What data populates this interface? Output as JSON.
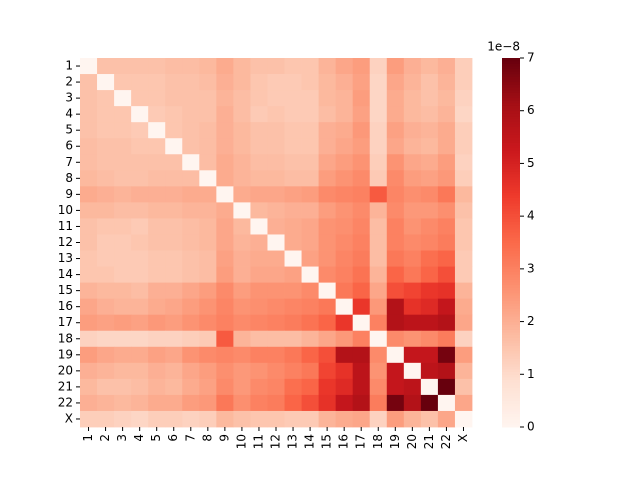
{
  "chart_data": {
    "type": "heatmap",
    "categories": [
      "1",
      "2",
      "3",
      "4",
      "5",
      "6",
      "7",
      "8",
      "9",
      "10",
      "11",
      "12",
      "13",
      "14",
      "15",
      "16",
      "17",
      "18",
      "19",
      "20",
      "21",
      "22",
      "X"
    ],
    "values": [
      [
        0,
        1.6,
        1.6,
        1.6,
        1.6,
        1.7,
        1.7,
        1.8,
        2.1,
        1.8,
        1.6,
        1.6,
        1.5,
        1.5,
        1.9,
        2.2,
        2.4,
        1.2,
        2.4,
        2.0,
        1.8,
        2.0,
        1.3
      ],
      [
        1.6,
        0,
        1.5,
        1.5,
        1.5,
        1.6,
        1.6,
        1.7,
        2.0,
        1.8,
        1.5,
        1.4,
        1.4,
        1.5,
        1.8,
        2.0,
        2.3,
        1.1,
        2.2,
        1.9,
        1.6,
        1.9,
        1.3
      ],
      [
        1.6,
        1.5,
        0,
        1.5,
        1.5,
        1.6,
        1.6,
        1.6,
        1.9,
        1.7,
        1.5,
        1.4,
        1.4,
        1.4,
        1.8,
        1.9,
        2.4,
        1.1,
        2.1,
        1.8,
        1.6,
        1.8,
        1.2
      ],
      [
        1.6,
        1.5,
        1.5,
        0,
        1.4,
        1.5,
        1.6,
        1.6,
        2.0,
        1.7,
        1.4,
        1.5,
        1.4,
        1.4,
        1.7,
        1.9,
        2.3,
        1.1,
        2.1,
        1.8,
        1.7,
        1.9,
        1.1
      ],
      [
        1.6,
        1.5,
        1.5,
        1.4,
        0,
        1.5,
        1.6,
        1.7,
        2.0,
        1.8,
        1.6,
        1.6,
        1.5,
        1.5,
        2.0,
        2.1,
        2.5,
        1.2,
        2.3,
        2.0,
        1.9,
        2.1,
        1.3
      ],
      [
        1.7,
        1.6,
        1.6,
        1.5,
        1.5,
        0,
        1.6,
        1.7,
        2.0,
        1.8,
        1.6,
        1.6,
        1.5,
        1.5,
        2.0,
        2.2,
        2.4,
        1.2,
        2.2,
        1.9,
        1.8,
        2.1,
        1.3
      ],
      [
        1.7,
        1.6,
        1.6,
        1.6,
        1.6,
        1.6,
        0,
        1.7,
        2.1,
        1.9,
        1.7,
        1.7,
        1.6,
        1.6,
        2.2,
        2.4,
        2.6,
        1.3,
        2.6,
        2.2,
        2.1,
        2.4,
        1.2
      ],
      [
        1.8,
        1.7,
        1.6,
        1.6,
        1.7,
        1.7,
        1.7,
        0,
        2.1,
        1.9,
        1.8,
        1.8,
        1.7,
        1.7,
        2.4,
        2.6,
        2.8,
        1.4,
        2.8,
        2.4,
        2.3,
        2.5,
        1.3
      ],
      [
        2.1,
        2.0,
        1.9,
        2.0,
        2.0,
        2.0,
        2.1,
        2.1,
        0,
        2.1,
        2.2,
        2.2,
        2.3,
        2.4,
        2.8,
        2.9,
        3.0,
        3.8,
        2.9,
        2.7,
        2.8,
        3.2,
        1.8
      ],
      [
        1.8,
        1.8,
        1.7,
        1.7,
        1.8,
        1.8,
        1.9,
        1.9,
        2.1,
        0,
        1.8,
        1.9,
        2.0,
        2.0,
        2.4,
        2.6,
        2.8,
        1.9,
        2.8,
        2.5,
        2.5,
        2.7,
        1.6
      ],
      [
        1.6,
        1.5,
        1.5,
        1.4,
        1.6,
        1.6,
        1.7,
        1.8,
        2.2,
        1.8,
        0,
        2.0,
        2.1,
        2.2,
        2.6,
        2.7,
        2.9,
        1.7,
        3.0,
        2.6,
        2.8,
        3.0,
        1.5
      ],
      [
        1.6,
        1.4,
        1.4,
        1.5,
        1.6,
        1.6,
        1.7,
        1.8,
        2.2,
        1.9,
        2.0,
        0,
        2.1,
        2.2,
        2.6,
        2.8,
        3.0,
        1.7,
        3.0,
        2.8,
        2.9,
        3.1,
        1.5
      ],
      [
        1.5,
        1.4,
        1.4,
        1.4,
        1.5,
        1.5,
        1.6,
        1.7,
        2.3,
        2.0,
        2.1,
        2.1,
        0,
        2.3,
        2.6,
        2.9,
        3.1,
        1.7,
        3.2,
        3.0,
        3.4,
        3.6,
        1.4
      ],
      [
        1.5,
        1.5,
        1.4,
        1.4,
        1.5,
        1.5,
        1.6,
        1.7,
        2.4,
        2.0,
        2.2,
        2.2,
        2.3,
        0,
        2.8,
        3.0,
        3.3,
        1.9,
        3.6,
        3.2,
        3.6,
        4.0,
        1.4
      ],
      [
        1.9,
        1.8,
        1.8,
        1.7,
        2.0,
        2.0,
        2.2,
        2.4,
        2.8,
        2.4,
        2.6,
        2.6,
        2.6,
        2.8,
        0,
        3.2,
        3.6,
        2.2,
        4.0,
        4.2,
        4.5,
        4.6,
        1.9
      ],
      [
        2.2,
        2.0,
        1.9,
        1.9,
        2.1,
        2.2,
        2.4,
        2.6,
        2.9,
        2.6,
        2.7,
        2.8,
        2.9,
        3.0,
        3.2,
        0,
        4.5,
        2.5,
        5.8,
        4.6,
        4.8,
        5.4,
        2.1
      ],
      [
        2.4,
        2.3,
        2.4,
        2.3,
        2.5,
        2.4,
        2.6,
        2.8,
        3.0,
        2.8,
        2.9,
        3.0,
        3.1,
        3.3,
        3.6,
        4.5,
        0,
        3.0,
        5.8,
        5.6,
        5.6,
        5.8,
        2.2
      ],
      [
        1.2,
        1.1,
        1.1,
        1.1,
        1.2,
        1.2,
        1.3,
        1.4,
        3.8,
        1.9,
        1.7,
        1.7,
        1.7,
        1.9,
        2.2,
        2.5,
        3.0,
        0,
        2.8,
        2.6,
        2.8,
        3.1,
        1.2
      ],
      [
        2.4,
        2.2,
        2.1,
        2.1,
        2.3,
        2.2,
        2.6,
        2.8,
        2.9,
        2.8,
        3.0,
        3.0,
        3.2,
        3.6,
        4.0,
        5.8,
        5.8,
        2.8,
        0,
        5.4,
        5.4,
        6.8,
        2.4
      ],
      [
        2.0,
        1.9,
        1.8,
        1.8,
        2.0,
        1.9,
        2.2,
        2.4,
        2.7,
        2.5,
        2.6,
        2.8,
        3.0,
        3.2,
        4.2,
        4.6,
        5.6,
        2.6,
        5.4,
        0,
        5.6,
        5.8,
        1.9
      ],
      [
        1.8,
        1.6,
        1.6,
        1.7,
        1.9,
        1.8,
        2.1,
        2.3,
        2.8,
        2.5,
        2.8,
        2.9,
        3.4,
        3.6,
        4.5,
        4.8,
        5.6,
        2.8,
        5.4,
        5.6,
        0,
        7.0,
        1.6
      ],
      [
        2.0,
        1.9,
        1.8,
        1.9,
        2.1,
        2.1,
        2.4,
        2.5,
        3.2,
        2.7,
        3.0,
        3.1,
        3.6,
        4.0,
        4.6,
        5.4,
        5.8,
        3.1,
        6.8,
        5.8,
        7.0,
        0,
        2.2
      ],
      [
        1.3,
        1.3,
        1.2,
        1.1,
        1.3,
        1.3,
        1.2,
        1.3,
        1.8,
        1.6,
        1.5,
        1.5,
        1.4,
        1.4,
        1.9,
        2.1,
        2.2,
        1.2,
        2.4,
        1.9,
        1.6,
        2.2,
        0
      ]
    ],
    "colormap": "Reds",
    "clim": [
      0,
      7
    ],
    "cticks": [
      0,
      1,
      2,
      3,
      4,
      5,
      6,
      7
    ],
    "colorbar_scale_label": "1e−8"
  }
}
